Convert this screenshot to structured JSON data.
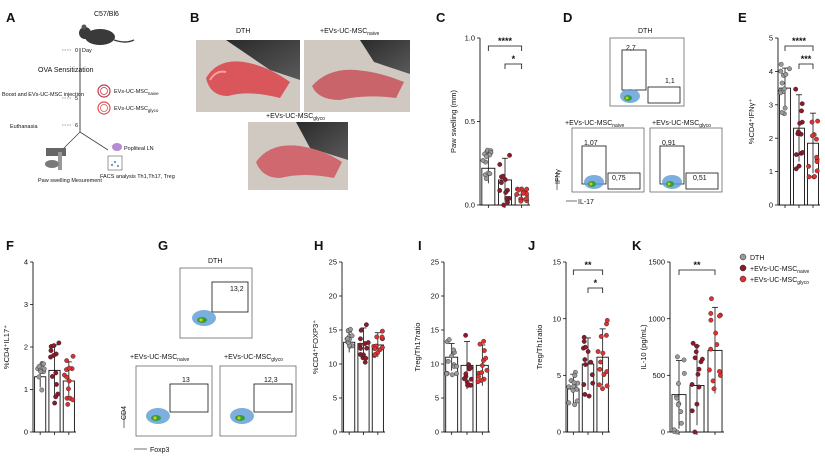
{
  "panel_letters": [
    "A",
    "B",
    "C",
    "D",
    "E",
    "F",
    "G",
    "H",
    "I",
    "J",
    "K"
  ],
  "panelA": {
    "mouse_strain": "C57/Bl6",
    "day_word": "Day",
    "day_ticks": [
      "0",
      "5",
      "6"
    ],
    "steps": [
      "OVA Sensitization",
      "Boost and EVs-UC-MSC injection",
      "Euthanasia"
    ],
    "ev_labels": [
      "EVs-UC-MSC",
      "naive",
      "EVs-UC-MSC",
      "glyco"
    ],
    "outcomes": [
      "Paw swelling Mesurement",
      "FACS analysis Th1,Th17, Treg"
    ],
    "node_label": "Popliteal LN"
  },
  "panelB": {
    "photo_labels": [
      "DTH",
      "+EVs-UC-MSC",
      "naive",
      "+EVs-UC-MSC",
      "glyco"
    ]
  },
  "groups": [
    "DTH",
    "+EVs-UC-MSC",
    "naive",
    "+EVs-UC-MSC",
    "glyco"
  ],
  "colors": {
    "dth": "#9a9a9a",
    "naive": "#8b1a2b",
    "glyco": "#e03030"
  },
  "facsD": {
    "titles": [
      "DTH",
      "+EVs-UC-MSC",
      "naive",
      "+EVs-UC-MSC",
      "glyco"
    ],
    "values": [
      "2,7",
      "1,1",
      "1,07",
      "0,75",
      "0,91",
      "0,51"
    ],
    "axis_y": "IFNγ",
    "axis_x": "IL-17"
  },
  "facsG": {
    "titles": [
      "DTH",
      "+EVs-UC-MSC",
      "naive",
      "+EVs-UC-MSC",
      "glyco"
    ],
    "values": [
      "13,2",
      "13",
      "12,3"
    ],
    "axis_y": "CD4",
    "axis_x": "Foxp3"
  },
  "chart_data": [
    {
      "panel": "C",
      "type": "bar",
      "ylabel": "Paw swelling (mm)",
      "ylim": [
        0,
        1.0
      ],
      "yticks": [
        "0.0",
        "0.5",
        "1.0"
      ],
      "means": [
        0.22,
        0.15,
        0.06
      ],
      "sd": [
        0.09,
        0.13,
        0.03
      ],
      "sig": [
        "****",
        "*"
      ]
    },
    {
      "panel": "E",
      "type": "bar",
      "ylabel": "%CD4⁺IFNγ⁺",
      "ylim": [
        0,
        5
      ],
      "yticks": [
        "0",
        "1",
        "2",
        "3",
        "4",
        "5"
      ],
      "means": [
        3.5,
        2.3,
        1.85
      ],
      "sd": [
        0.6,
        1.0,
        0.9
      ],
      "sig": [
        "****",
        "***"
      ]
    },
    {
      "panel": "F",
      "type": "bar",
      "ylabel": "%CD4⁺IL17⁺",
      "ylim": [
        0,
        4
      ],
      "yticks": [
        "0",
        "1",
        "2",
        "3",
        "4"
      ],
      "means": [
        1.3,
        1.45,
        1.2
      ],
      "sd": [
        0.25,
        0.6,
        0.45
      ],
      "sig": []
    },
    {
      "panel": "H",
      "type": "bar",
      "ylabel": "%CD4⁺FOXP3⁺",
      "ylim": [
        0,
        25
      ],
      "yticks": [
        "0",
        "5",
        "10",
        "15",
        "20",
        "25"
      ],
      "means": [
        13.2,
        13.0,
        12.8
      ],
      "sd": [
        1.5,
        2.3,
        1.8
      ],
      "sig": []
    },
    {
      "panel": "I",
      "type": "bar",
      "ylabel": "Treg/Th17ratio",
      "ylim": [
        0,
        25
      ],
      "yticks": [
        "0",
        "5",
        "10",
        "15",
        "20",
        "25"
      ],
      "means": [
        11.0,
        9.8,
        9.8
      ],
      "sd": [
        2.0,
        3.5,
        3.0
      ],
      "sig": []
    },
    {
      "panel": "J",
      "type": "bar",
      "ylabel": "Treg/Th1ratio",
      "ylim": [
        0,
        15
      ],
      "yticks": [
        "0",
        "5",
        "10",
        "15"
      ],
      "means": [
        3.8,
        6.0,
        6.6
      ],
      "sd": [
        1.3,
        2.3,
        2.5
      ],
      "sig": [
        "**",
        "*"
      ]
    },
    {
      "panel": "K",
      "type": "bar",
      "ylabel": "IL-10 (pg/mL)",
      "ylim": [
        0,
        1500
      ],
      "yticks": [
        "0",
        "500",
        "1000",
        "1500"
      ],
      "means": [
        330,
        410,
        720
      ],
      "sd": [
        300,
        350,
        380
      ],
      "sig": [
        "**"
      ]
    }
  ]
}
